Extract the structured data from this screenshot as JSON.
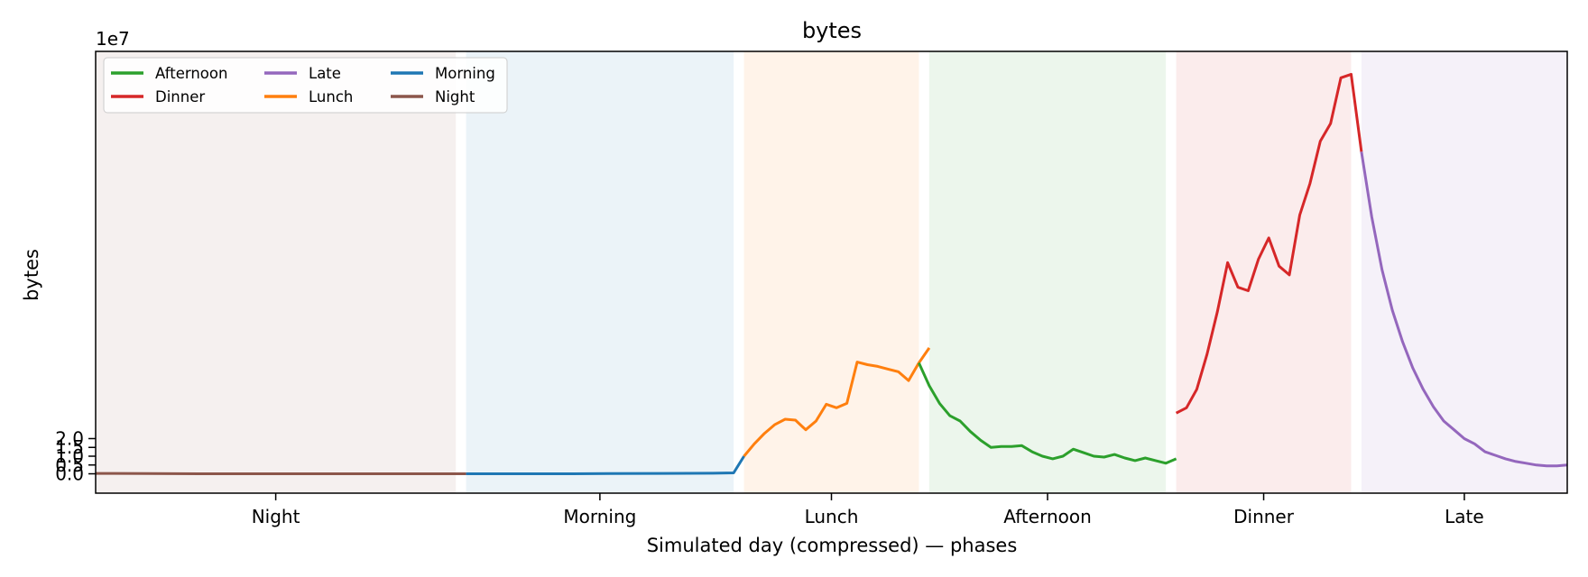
{
  "chart_data": {
    "type": "line",
    "title": "bytes",
    "xlabel": "Simulated day (compressed) — phases",
    "ylabel": "bytes",
    "y_scale_label": "1e7",
    "y_multiplier": 10000000,
    "ylim": [
      -1.1,
      24.0
    ],
    "y_ticks": [
      0.0,
      0.5,
      1.0,
      1.5,
      2.0
    ],
    "y_tick_labels": [
      "0.0",
      "0.5",
      "1.0",
      "1.5",
      "2.0"
    ],
    "xlim": [
      0,
      143
    ],
    "grid": false,
    "legend": {
      "placement": "top-left",
      "columns": 3,
      "entries": [
        "Afternoon",
        "Dinner",
        "Late",
        "Lunch",
        "Morning",
        "Night"
      ]
    },
    "colors": {
      "Afternoon": "#2ca02c",
      "Dinner": "#d62728",
      "Late": "#9467bd",
      "Lunch": "#ff7f0e",
      "Morning": "#1f77b4",
      "Night": "#8c564b"
    },
    "phases": [
      {
        "name": "Night",
        "start": 0,
        "end": 35,
        "label_x": 17.5
      },
      {
        "name": "Morning",
        "start": 36,
        "end": 62,
        "label_x": 49
      },
      {
        "name": "Lunch",
        "start": 63,
        "end": 80,
        "label_x": 71.5
      },
      {
        "name": "Afternoon",
        "start": 81,
        "end": 104,
        "label_x": 92.5
      },
      {
        "name": "Dinner",
        "start": 105,
        "end": 122,
        "label_x": 113.5
      },
      {
        "name": "Late",
        "start": 123,
        "end": 143,
        "label_x": 133
      }
    ],
    "series": [
      {
        "name": "Night",
        "x": [
          0,
          5,
          10,
          15,
          20,
          25,
          30,
          36
        ],
        "values": [
          0.02,
          0.01,
          0.0,
          0.0,
          0.0,
          0.0,
          0.0,
          0.0
        ]
      },
      {
        "name": "Morning",
        "x": [
          36,
          40,
          45,
          50,
          55,
          60,
          62,
          63
        ],
        "values": [
          0.0,
          0.0,
          0.0,
          0.01,
          0.02,
          0.03,
          0.05,
          1.0
        ]
      },
      {
        "name": "Lunch",
        "x": [
          63,
          64,
          65,
          66,
          67,
          68,
          69,
          70,
          71,
          72,
          73,
          74,
          75,
          76,
          77,
          78,
          79,
          80,
          81
        ],
        "values": [
          1.0,
          1.7,
          2.3,
          2.8,
          3.1,
          3.05,
          2.5,
          3.0,
          3.95,
          3.75,
          4.0,
          6.35,
          6.2,
          6.1,
          5.95,
          5.8,
          5.3,
          6.3,
          7.15
        ]
      },
      {
        "name": "Afternoon",
        "x": [
          80,
          81,
          82,
          83,
          84,
          85,
          86,
          87,
          88,
          89,
          90,
          91,
          92,
          93,
          94,
          95,
          96,
          97,
          98,
          99,
          100,
          101,
          102,
          103,
          104,
          105
        ],
        "values": [
          6.3,
          5.0,
          4.0,
          3.3,
          3.0,
          2.4,
          1.9,
          1.5,
          1.55,
          1.55,
          1.6,
          1.25,
          1.0,
          0.85,
          1.0,
          1.4,
          1.2,
          1.0,
          0.95,
          1.1,
          0.9,
          0.75,
          0.9,
          0.75,
          0.6,
          0.85
        ]
      },
      {
        "name": "Dinner",
        "x": [
          105,
          106,
          107,
          108,
          109,
          110,
          111,
          112,
          113,
          114,
          115,
          116,
          117,
          118,
          119,
          120,
          121,
          122,
          123
        ],
        "values": [
          3.45,
          3.75,
          4.8,
          6.8,
          9.2,
          12.0,
          10.6,
          10.4,
          12.2,
          13.4,
          11.8,
          11.3,
          14.7,
          16.5,
          18.9,
          19.9,
          22.5,
          22.7,
          18.3
        ]
      },
      {
        "name": "Late",
        "x": [
          123,
          124,
          125,
          126,
          127,
          128,
          129,
          130,
          131,
          132,
          133,
          134,
          135,
          136,
          137,
          138,
          139,
          140,
          141,
          142,
          143
        ],
        "values": [
          18.3,
          14.6,
          11.6,
          9.3,
          7.5,
          6.0,
          4.8,
          3.8,
          3.0,
          2.5,
          2.0,
          1.7,
          1.25,
          1.05,
          0.85,
          0.7,
          0.6,
          0.5,
          0.45,
          0.45,
          0.5
        ]
      }
    ]
  }
}
